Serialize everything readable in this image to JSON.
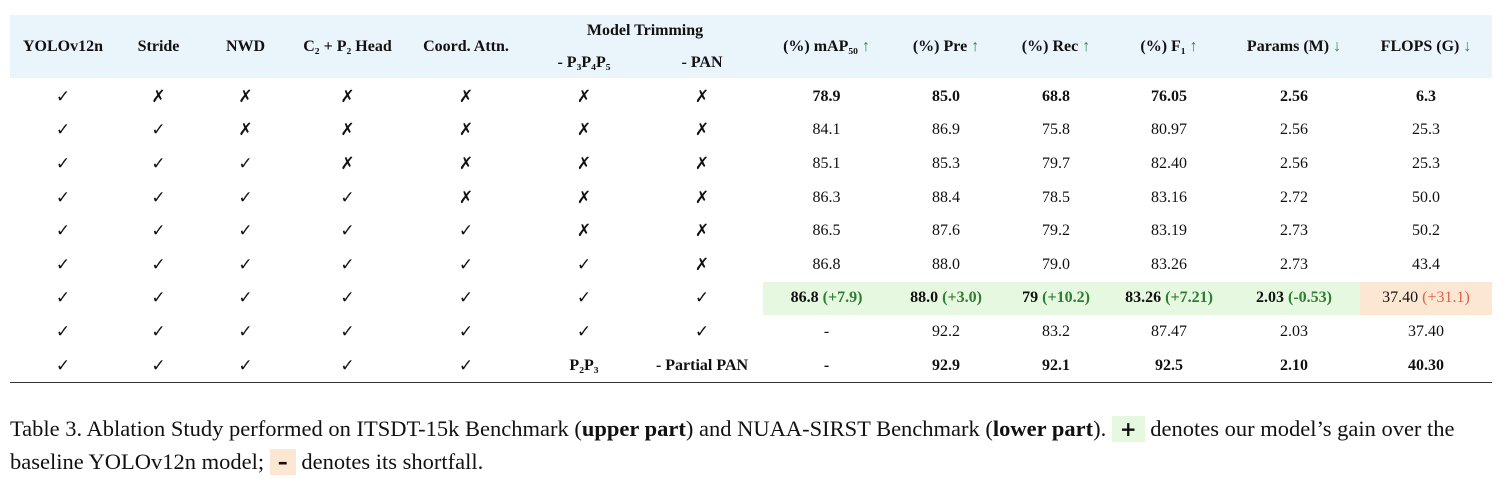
{
  "table": {
    "headers": [
      {
        "label": "YOLOv12n"
      },
      {
        "label": "Stride"
      },
      {
        "label": "NWD"
      },
      {
        "label": "C₂ + P₂ Head"
      },
      {
        "label": "Coord. Attn."
      },
      {
        "label": "Model Trimming",
        "sub": [
          "- P₃P₄P₅",
          "- PAN"
        ]
      },
      {
        "label": "(%) mAP₅₀",
        "arrow": "↑"
      },
      {
        "label": "(%) Pre",
        "arrow": "↑"
      },
      {
        "label": "(%) Rec",
        "arrow": "↑"
      },
      {
        "label": "(%) F₁",
        "arrow": "↑"
      },
      {
        "label": "Params (M)",
        "arrow": "↓"
      },
      {
        "label": "FLOPS (G)",
        "arrow": "↓"
      }
    ],
    "rows": [
      {
        "bold": true,
        "checks": [
          "✓",
          "✗",
          "✗",
          "✗",
          "✗",
          "✗",
          "✗"
        ],
        "metrics": [
          "78.9",
          "85.0",
          "68.8",
          "76.05",
          "2.56",
          "6.3"
        ]
      },
      {
        "bold": false,
        "checks": [
          "✓",
          "✓",
          "✗",
          "✗",
          "✗",
          "✗",
          "✗"
        ],
        "metrics": [
          "84.1",
          "86.9",
          "75.8",
          "80.97",
          "2.56",
          "25.3"
        ]
      },
      {
        "bold": false,
        "checks": [
          "✓",
          "✓",
          "✓",
          "✗",
          "✗",
          "✗",
          "✗"
        ],
        "metrics": [
          "85.1",
          "85.3",
          "79.7",
          "82.40",
          "2.56",
          "25.3"
        ]
      },
      {
        "bold": false,
        "checks": [
          "✓",
          "✓",
          "✓",
          "✓",
          "✗",
          "✗",
          "✗"
        ],
        "metrics": [
          "86.3",
          "88.4",
          "78.5",
          "83.16",
          "2.72",
          "50.0"
        ]
      },
      {
        "bold": false,
        "checks": [
          "✓",
          "✓",
          "✓",
          "✓",
          "✓",
          "✗",
          "✗"
        ],
        "metrics": [
          "86.5",
          "87.6",
          "79.2",
          "83.19",
          "2.73",
          "50.2"
        ]
      },
      {
        "bold": false,
        "checks": [
          "✓",
          "✓",
          "✓",
          "✓",
          "✓",
          "✓",
          "✗"
        ],
        "metrics": [
          "86.8",
          "88.0",
          "79.0",
          "83.26",
          "2.73",
          "43.4"
        ]
      },
      {
        "bold": false,
        "checks": [
          "✓",
          "✓",
          "✓",
          "✓",
          "✓",
          "✓",
          "✓"
        ],
        "metrics": [
          {
            "value": "86.8",
            "delta": "(+7.9)",
            "bold": true,
            "tone": "gain"
          },
          {
            "value": "88.0",
            "delta": "(+3.0)",
            "bold": true,
            "tone": "gain"
          },
          {
            "value": "79",
            "delta": "(+10.2)",
            "bold": true,
            "tone": "gain"
          },
          {
            "value": "83.26",
            "delta": "(+7.21)",
            "bold": true,
            "tone": "gain"
          },
          {
            "value": "2.03",
            "delta": "(-0.53)",
            "bold": true,
            "tone": "gain"
          },
          {
            "value": "37.40",
            "delta": "(+31.1)",
            "bold": false,
            "tone": "loss"
          }
        ]
      },
      {
        "bold": false,
        "checks": [
          "✓",
          "✓",
          "✓",
          "✓",
          "✓",
          "✓",
          "✓"
        ],
        "metrics": [
          "-",
          "92.2",
          "83.2",
          "87.47",
          "2.03",
          "37.40"
        ]
      },
      {
        "bold": true,
        "checks": [
          "✓",
          "✓",
          "✓",
          "✓",
          "✓",
          "P₂P₃",
          "- Partial PAN"
        ],
        "metrics": [
          "-",
          "92.9",
          "92.1",
          "92.5",
          "2.10",
          "40.30"
        ]
      }
    ]
  },
  "caption": [
    {
      "text": "Table 3. Ablation Study performed on ITSDT-15k Benchmark ("
    },
    {
      "text": "upper part",
      "bold": true
    },
    {
      "text": ") and NUAA-SIRST Benchmark ("
    },
    {
      "text": "lower part",
      "bold": true
    },
    {
      "text": "). "
    },
    {
      "text": "+",
      "box": "gain"
    },
    {
      "text": " denotes our model’s gain over the baseline YOLOv12n model; "
    },
    {
      "text": "–",
      "box": "loss"
    },
    {
      "text": " denotes its shortfall."
    }
  ]
}
